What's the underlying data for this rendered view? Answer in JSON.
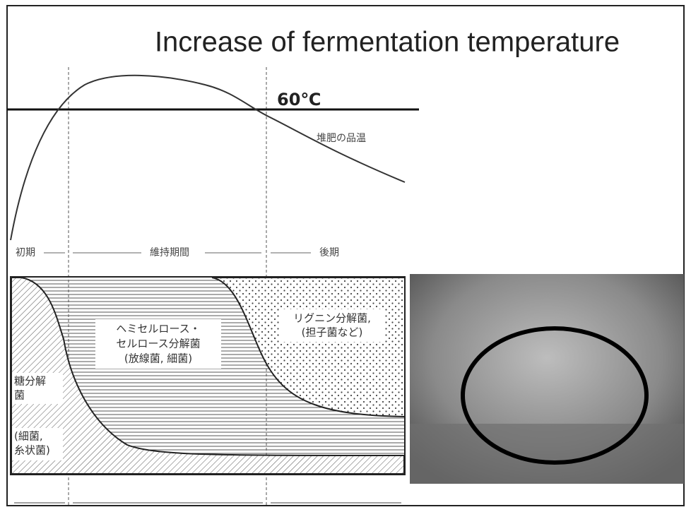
{
  "header": {
    "title": "Increase of fermentation temperature"
  },
  "temperature": {
    "threshold_label": "60℃",
    "curve_label": "堆肥の品温"
  },
  "phases": [
    "初期",
    "維持期間",
    "後期"
  ],
  "regions": [
    {
      "lines": [
        "糖分解",
        "菌",
        "(細菌,",
        "糸状菌)"
      ]
    },
    {
      "lines": [
        "ヘミセルロース・",
        "セルロース分解菌",
        "(放線菌, 細菌)"
      ]
    },
    {
      "lines": [
        "リグニン分解菌,",
        "(担子菌など)"
      ]
    }
  ]
}
